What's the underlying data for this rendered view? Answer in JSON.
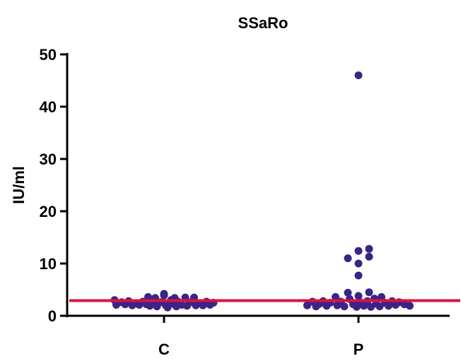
{
  "chart_data": {
    "type": "scatter",
    "title": "SSaRo",
    "xlabel": "",
    "ylabel": "IU/ml",
    "ylim": [
      0,
      50
    ],
    "yticks": [
      0,
      10,
      20,
      30,
      40,
      50
    ],
    "categories": [
      "C",
      "P"
    ],
    "grid": false,
    "legend": "none",
    "reference_line": {
      "y": 2.9,
      "color": "#e0123f"
    },
    "marker_color": "#3b2485",
    "series": [
      {
        "category": "C",
        "points": [
          {
            "dx": -0.28,
            "y": 3.0
          },
          {
            "dx": -0.27,
            "y": 2.1
          },
          {
            "dx": -0.24,
            "y": 2.6
          },
          {
            "dx": -0.22,
            "y": 2.2
          },
          {
            "dx": -0.2,
            "y": 2.8
          },
          {
            "dx": -0.18,
            "y": 2.0
          },
          {
            "dx": -0.16,
            "y": 2.4
          },
          {
            "dx": -0.14,
            "y": 2.1
          },
          {
            "dx": -0.12,
            "y": 2.7
          },
          {
            "dx": -0.1,
            "y": 2.2
          },
          {
            "dx": -0.09,
            "y": 3.6
          },
          {
            "dx": -0.08,
            "y": 1.9
          },
          {
            "dx": -0.06,
            "y": 2.5
          },
          {
            "dx": -0.05,
            "y": 3.4
          },
          {
            "dx": -0.04,
            "y": 1.8
          },
          {
            "dx": -0.02,
            "y": 2.6
          },
          {
            "dx": 0.0,
            "y": 3.9
          },
          {
            "dx": 0.0,
            "y": 4.2
          },
          {
            "dx": 0.01,
            "y": 2.0
          },
          {
            "dx": 0.02,
            "y": 1.6
          },
          {
            "dx": 0.04,
            "y": 3.0
          },
          {
            "dx": 0.05,
            "y": 2.3
          },
          {
            "dx": 0.06,
            "y": 3.4
          },
          {
            "dx": 0.07,
            "y": 1.8
          },
          {
            "dx": 0.08,
            "y": 2.7
          },
          {
            "dx": 0.1,
            "y": 2.1
          },
          {
            "dx": 0.12,
            "y": 3.5
          },
          {
            "dx": 0.13,
            "y": 1.9
          },
          {
            "dx": 0.15,
            "y": 2.6
          },
          {
            "dx": 0.17,
            "y": 3.5
          },
          {
            "dx": 0.18,
            "y": 2.0
          },
          {
            "dx": 0.2,
            "y": 2.4
          },
          {
            "dx": 0.22,
            "y": 2.0
          },
          {
            "dx": 0.24,
            "y": 2.7
          },
          {
            "dx": 0.26,
            "y": 2.1
          },
          {
            "dx": 0.28,
            "y": 2.5
          }
        ]
      },
      {
        "category": "P",
        "points": [
          {
            "dx": 0.0,
            "y": 46.0
          },
          {
            "dx": 0.06,
            "y": 12.8
          },
          {
            "dx": 0.0,
            "y": 12.4
          },
          {
            "dx": -0.06,
            "y": 11.0
          },
          {
            "dx": 0.06,
            "y": 11.3
          },
          {
            "dx": 0.0,
            "y": 10.0
          },
          {
            "dx": 0.0,
            "y": 7.7
          },
          {
            "dx": -0.29,
            "y": 2.0
          },
          {
            "dx": -0.26,
            "y": 2.7
          },
          {
            "dx": -0.24,
            "y": 1.8
          },
          {
            "dx": -0.22,
            "y": 2.3
          },
          {
            "dx": -0.2,
            "y": 2.8
          },
          {
            "dx": -0.18,
            "y": 1.9
          },
          {
            "dx": -0.16,
            "y": 2.5
          },
          {
            "dx": -0.13,
            "y": 3.6
          },
          {
            "dx": -0.12,
            "y": 2.0
          },
          {
            "dx": -0.1,
            "y": 2.7
          },
          {
            "dx": -0.08,
            "y": 1.8
          },
          {
            "dx": -0.06,
            "y": 4.4
          },
          {
            "dx": -0.05,
            "y": 3.2
          },
          {
            "dx": -0.03,
            "y": 2.2
          },
          {
            "dx": -0.01,
            "y": 1.7
          },
          {
            "dx": 0.0,
            "y": 3.8
          },
          {
            "dx": 0.01,
            "y": 2.6
          },
          {
            "dx": 0.03,
            "y": 1.9
          },
          {
            "dx": 0.05,
            "y": 2.8
          },
          {
            "dx": 0.06,
            "y": 4.5
          },
          {
            "dx": 0.07,
            "y": 1.7
          },
          {
            "dx": 0.09,
            "y": 3.3
          },
          {
            "dx": 0.1,
            "y": 2.3
          },
          {
            "dx": 0.12,
            "y": 1.8
          },
          {
            "dx": 0.13,
            "y": 3.6
          },
          {
            "dx": 0.15,
            "y": 2.5
          },
          {
            "dx": 0.17,
            "y": 1.9
          },
          {
            "dx": 0.19,
            "y": 2.8
          },
          {
            "dx": 0.21,
            "y": 2.1
          },
          {
            "dx": 0.23,
            "y": 2.6
          },
          {
            "dx": 0.26,
            "y": 2.2
          },
          {
            "dx": 0.29,
            "y": 1.9
          }
        ]
      }
    ]
  }
}
